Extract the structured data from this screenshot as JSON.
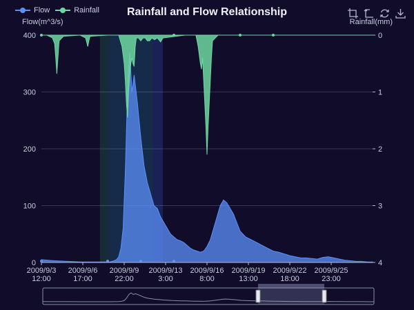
{
  "title": "Rainfall and Flow Relationship",
  "legend": [
    {
      "name": "Flow",
      "color": "#5470c6"
    },
    {
      "name": "Rainfall",
      "color": "#91cc75"
    }
  ],
  "toolbox": [
    "zoom-icon",
    "zoom-reset-icon",
    "restore-icon",
    "save-image-icon"
  ],
  "colors": {
    "background": "#100c2a",
    "flow": "#5b8ff9",
    "rainfall": "#6fd8a0",
    "text": "#c9cde0"
  },
  "chart_data": {
    "type": "area",
    "title": "Rainfall and Flow Relationship",
    "x_tick_labels": [
      [
        "2009/9/3",
        "12:00"
      ],
      [
        "2009/9/6",
        "17:00"
      ],
      [
        "2009/9/9",
        "22:00"
      ],
      [
        "2009/9/13",
        "3:00"
      ],
      [
        "2009/9/16",
        "8:00"
      ],
      [
        "2009/9/19",
        "13:00"
      ],
      [
        "2009/9/22",
        "18:00"
      ],
      [
        "2009/9/25",
        "23:00"
      ]
    ],
    "x_range": [
      "2009/9/3 12:00",
      "2009/9/28 12:00"
    ],
    "y_left": {
      "label": "Flow(m^3/s)",
      "range": [
        0,
        400
      ],
      "ticks": [
        0,
        100,
        200,
        300,
        400
      ]
    },
    "y_right": {
      "label": "Rainfall(mm)",
      "range": [
        0,
        4
      ],
      "ticks": [
        0,
        1,
        2,
        3,
        4
      ],
      "inverse": true
    },
    "series": [
      {
        "name": "Flow",
        "axis": "left",
        "x": [
          0,
          12,
          24,
          48,
          72,
          84,
          100,
          110,
          118,
          124,
          128,
          132,
          136,
          140,
          144,
          148,
          152,
          156,
          160,
          164,
          168,
          174,
          180,
          186,
          192,
          198,
          204,
          210,
          216,
          222,
          228,
          234,
          240,
          246,
          252,
          258,
          264,
          270,
          276,
          282,
          288,
          294,
          300,
          306,
          312,
          318,
          324,
          330,
          336,
          342,
          348,
          354,
          360,
          370,
          380,
          390,
          400,
          410,
          420,
          430,
          440,
          450,
          460,
          470,
          480,
          490,
          500,
          510,
          520,
          530,
          540,
          550,
          560,
          570,
          580,
          590,
          600
        ],
        "values": [
          5,
          4,
          3,
          2,
          1,
          1,
          1,
          1,
          1,
          1,
          2,
          3,
          5,
          10,
          25,
          60,
          160,
          300,
          370,
          300,
          330,
          280,
          220,
          170,
          140,
          120,
          100,
          95,
          80,
          70,
          60,
          50,
          45,
          40,
          38,
          35,
          30,
          25,
          22,
          20,
          18,
          20,
          28,
          40,
          60,
          80,
          100,
          110,
          105,
          95,
          85,
          70,
          55,
          45,
          40,
          35,
          30,
          25,
          20,
          18,
          15,
          12,
          10,
          8,
          8,
          7,
          6,
          9,
          10,
          8,
          6,
          4,
          3,
          2,
          2,
          1,
          1
        ]
      },
      {
        "name": "Rainfall",
        "axis": "right",
        "x": [
          0,
          10,
          20,
          24,
          26,
          28,
          32,
          40,
          70,
          80,
          82,
          84,
          86,
          88,
          120,
          140,
          146,
          150,
          152,
          154,
          156,
          158,
          160,
          162,
          164,
          166,
          168,
          170,
          172,
          176,
          180,
          184,
          188,
          192,
          196,
          200,
          205,
          210,
          216,
          220,
          260,
          280,
          284,
          288,
          290,
          292,
          294,
          296,
          298,
          300,
          302,
          304,
          306,
          308,
          310,
          320,
          340,
          360,
          380,
          400,
          420,
          440,
          460,
          480,
          500,
          520,
          540,
          560,
          580,
          600
        ],
        "values": [
          0,
          0,
          0.05,
          0.15,
          0.4,
          0.68,
          0.1,
          0.02,
          0,
          0.05,
          0.12,
          0.2,
          0.1,
          0.02,
          0,
          0,
          0.2,
          0.5,
          0.8,
          1.2,
          1.45,
          1.0,
          0.7,
          0.5,
          0.4,
          0.5,
          0.55,
          0.2,
          0.05,
          0.05,
          0.1,
          0.05,
          0.05,
          0.1,
          0.1,
          0.05,
          0.08,
          0.05,
          0.12,
          0.05,
          0,
          0,
          0.2,
          0.5,
          0.6,
          0.4,
          0.8,
          1.2,
          1.6,
          2.1,
          1.6,
          1.2,
          0.8,
          0.4,
          0.1,
          0,
          0,
          0,
          0,
          0,
          0,
          0,
          0,
          0,
          0,
          0,
          0,
          0,
          0,
          0
        ]
      }
    ],
    "mark_areas": [
      [
        106,
        124
      ],
      [
        124,
        202
      ],
      [
        202,
        220
      ]
    ],
    "data_zoom": {
      "start": 0.65,
      "end": 0.85
    },
    "grid": true,
    "legend_position": "top-left"
  }
}
